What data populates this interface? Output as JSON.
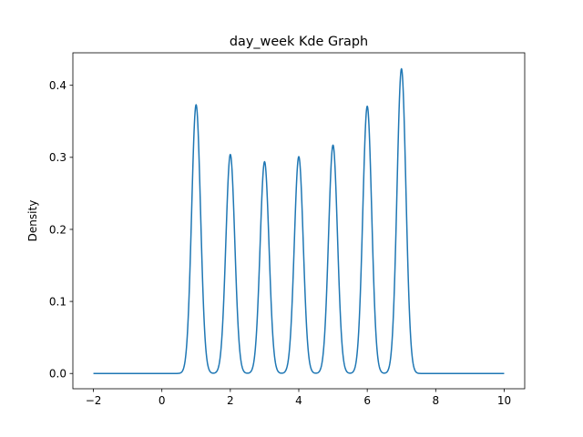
{
  "chart_data": {
    "type": "line",
    "title": "day_week Kde Graph",
    "xlabel": "",
    "ylabel": "Density",
    "xlim": [
      -2.6,
      10.6
    ],
    "ylim": [
      -0.0212,
      0.4451
    ],
    "xticks": [
      "−2",
      "0",
      "2",
      "4",
      "6",
      "8",
      "10"
    ],
    "xtick_values": [
      -2,
      0,
      2,
      4,
      6,
      8,
      10
    ],
    "yticks": [
      "0.0",
      "0.1",
      "0.2",
      "0.3",
      "0.4"
    ],
    "ytick_values": [
      0,
      0.1,
      0.2,
      0.3,
      0.4
    ],
    "grid": false,
    "line_color": "#1f77b4",
    "series": [
      {
        "x_range": [
          -2,
          10
        ],
        "peaks": [
          {
            "x": 1,
            "y": 0.373
          },
          {
            "x": 2,
            "y": 0.304
          },
          {
            "x": 3,
            "y": 0.294
          },
          {
            "x": 4,
            "y": 0.301
          },
          {
            "x": 5,
            "y": 0.317
          },
          {
            "x": 6,
            "y": 0.371
          },
          {
            "x": 7,
            "y": 0.423
          }
        ],
        "troughs": [
          {
            "x": 1.5,
            "y": 0.008
          },
          {
            "x": 2.5,
            "y": 0.007
          },
          {
            "x": 3.5,
            "y": 0.007
          },
          {
            "x": 4.5,
            "y": 0.007
          },
          {
            "x": 5.5,
            "y": 0.007
          },
          {
            "x": 6.5,
            "y": 0.01
          }
        ]
      }
    ]
  }
}
